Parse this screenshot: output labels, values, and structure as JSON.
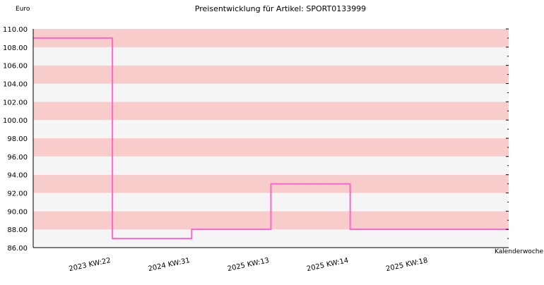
{
  "chart_data": {
    "type": "line",
    "title": "Preisentwicklung für Artikel: SPORT0133999",
    "ylabel": "Euro",
    "xlabel": "Kalenderwoche",
    "ylim": [
      86.0,
      110.0
    ],
    "y_ticks": [
      "86.00",
      "88.00",
      "90.00",
      "92.00",
      "94.00",
      "96.00",
      "98.00",
      "100.00",
      "102.00",
      "104.00",
      "106.00",
      "108.00",
      "110.00"
    ],
    "categories": [
      "2023 KW:22",
      "2024 KW:31",
      "2025 KW:13",
      "2025 KW:14",
      "2025 KW:18"
    ],
    "series": [
      {
        "values": [
          109.0,
          87.0,
          88.0,
          93.0,
          88.0
        ]
      }
    ],
    "line_style": "step",
    "grid": true,
    "colors": {
      "line": "#ff66cc",
      "band_pink": "#f9cccc",
      "band_light": "#f5f5f5",
      "axis": "#000000"
    }
  }
}
